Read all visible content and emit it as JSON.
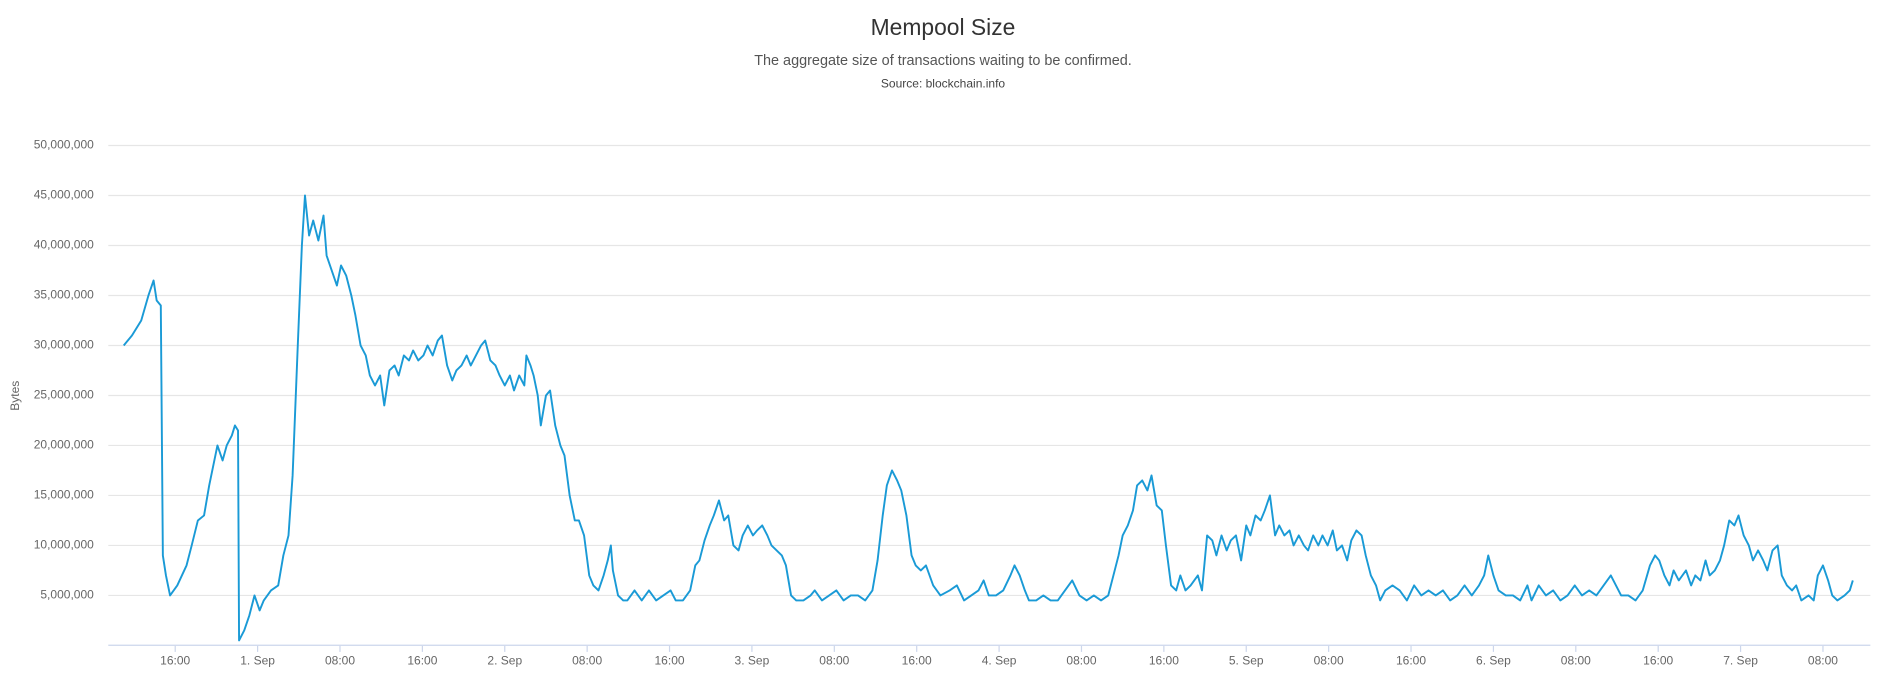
{
  "chart_data": {
    "type": "line",
    "title": "Mempool Size",
    "subtitle": "The aggregate size of transactions waiting to be confirmed.",
    "source": "Source: blockchain.info",
    "y_label": "Bytes",
    "color": "#1a9ad6",
    "grid": true,
    "xlim": [
      9.5,
      180.6
    ],
    "xticks": [
      {
        "value": 16,
        "label": "16:00"
      },
      {
        "value": 24,
        "label": "1. Sep"
      },
      {
        "value": 32,
        "label": "08:00"
      },
      {
        "value": 40,
        "label": "16:00"
      },
      {
        "value": 48,
        "label": "2. Sep"
      },
      {
        "value": 56,
        "label": "08:00"
      },
      {
        "value": 64,
        "label": "16:00"
      },
      {
        "value": 72,
        "label": "3. Sep"
      },
      {
        "value": 80,
        "label": "08:00"
      },
      {
        "value": 88,
        "label": "16:00"
      },
      {
        "value": 96,
        "label": "4. Sep"
      },
      {
        "value": 104,
        "label": "08:00"
      },
      {
        "value": 112,
        "label": "16:00"
      },
      {
        "value": 120,
        "label": "5. Sep"
      },
      {
        "value": 128,
        "label": "08:00"
      },
      {
        "value": 136,
        "label": "16:00"
      },
      {
        "value": 144,
        "label": "6. Sep"
      },
      {
        "value": 152,
        "label": "08:00"
      },
      {
        "value": 160,
        "label": "16:00"
      },
      {
        "value": 168,
        "label": "7. Sep"
      },
      {
        "value": 176,
        "label": "08:00"
      }
    ],
    "ylim": [
      0,
      50000000
    ],
    "yticks": [
      {
        "value": 5000000,
        "label": "5,000,000"
      },
      {
        "value": 10000000,
        "label": "10,000,000"
      },
      {
        "value": 15000000,
        "label": "15,000,000"
      },
      {
        "value": 20000000,
        "label": "20,000,000"
      },
      {
        "value": 25000000,
        "label": "25,000,000"
      },
      {
        "value": 30000000,
        "label": "30,000,000"
      },
      {
        "value": 35000000,
        "label": "35,000,000"
      },
      {
        "value": 40000000,
        "label": "40,000,000"
      },
      {
        "value": 45000000,
        "label": "45,000,000"
      },
      {
        "value": 50000000,
        "label": "50,000,000"
      }
    ],
    "x": [
      11.0,
      11.8,
      12.7,
      13.4,
      13.9,
      14.2,
      14.6,
      14.8,
      15.1,
      15.5,
      16.2,
      17.1,
      17.6,
      18.2,
      18.8,
      19.3,
      19.7,
      20.1,
      20.6,
      21.0,
      21.5,
      21.8,
      22.1,
      22.2,
      22.7,
      23.2,
      23.7,
      24.2,
      24.6,
      25.3,
      26.0,
      26.5,
      27.0,
      27.4,
      27.9,
      28.3,
      28.6,
      29.0,
      29.4,
      29.9,
      30.4,
      30.7,
      31.2,
      31.7,
      32.1,
      32.6,
      33.1,
      33.5,
      34.0,
      34.5,
      34.9,
      35.4,
      35.9,
      36.3,
      36.8,
      37.3,
      37.7,
      38.2,
      38.7,
      39.1,
      39.6,
      40.1,
      40.5,
      41.0,
      41.5,
      41.9,
      42.4,
      42.9,
      43.3,
      43.8,
      44.3,
      44.7,
      45.2,
      45.7,
      46.1,
      46.6,
      47.1,
      47.5,
      48.0,
      48.5,
      48.9,
      49.4,
      49.9,
      50.1,
      50.5,
      50.8,
      51.2,
      51.5,
      52.0,
      52.4,
      52.9,
      53.4,
      53.8,
      54.3,
      54.8,
      55.2,
      55.7,
      56.2,
      56.6,
      57.1,
      57.6,
      58.0,
      58.3,
      58.5,
      59.0,
      59.5,
      59.9,
      60.6,
      61.3,
      62.0,
      62.7,
      63.4,
      64.1,
      64.6,
      65.3,
      66.0,
      66.5,
      66.9,
      67.4,
      67.9,
      68.3,
      68.8,
      69.3,
      69.7,
      70.2,
      70.7,
      71.1,
      71.6,
      72.1,
      72.5,
      73.0,
      73.5,
      73.9,
      74.4,
      74.9,
      75.3,
      75.8,
      76.3,
      77.0,
      77.7,
      78.1,
      78.8,
      79.5,
      80.2,
      80.9,
      81.6,
      82.3,
      83.0,
      83.7,
      84.2,
      84.7,
      85.1,
      85.6,
      86.1,
      86.5,
      87.0,
      87.5,
      87.9,
      88.4,
      88.9,
      89.6,
      90.3,
      91.2,
      91.9,
      92.6,
      93.3,
      94.0,
      94.5,
      95.0,
      95.7,
      96.4,
      97.1,
      97.5,
      98.0,
      98.5,
      98.9,
      99.6,
      100.3,
      101.0,
      101.7,
      102.4,
      103.1,
      103.8,
      104.5,
      105.2,
      105.9,
      106.6,
      107.1,
      107.6,
      108.0,
      108.5,
      109.0,
      109.4,
      109.9,
      110.4,
      110.8,
      111.3,
      111.8,
      112.2,
      112.7,
      113.2,
      113.6,
      114.1,
      114.6,
      115.3,
      115.7,
      116.2,
      116.7,
      117.1,
      117.6,
      118.1,
      118.5,
      119.0,
      119.5,
      120.0,
      120.4,
      120.9,
      121.4,
      121.8,
      122.3,
      122.8,
      123.2,
      123.7,
      124.2,
      124.6,
      125.1,
      125.6,
      126.0,
      126.5,
      127.0,
      127.4,
      127.9,
      128.4,
      128.8,
      129.3,
      129.8,
      130.2,
      130.7,
      131.2,
      131.6,
      132.1,
      132.6,
      133.0,
      133.5,
      134.2,
      134.9,
      135.6,
      136.3,
      137.0,
      137.7,
      138.4,
      139.1,
      139.8,
      140.5,
      141.2,
      141.9,
      142.6,
      143.1,
      143.5,
      144.0,
      144.5,
      145.2,
      145.9,
      146.6,
      147.3,
      147.7,
      148.4,
      149.1,
      149.8,
      150.5,
      151.2,
      151.9,
      152.6,
      153.3,
      154.0,
      154.7,
      155.4,
      155.9,
      156.4,
      157.1,
      157.8,
      158.5,
      159.2,
      159.7,
      160.1,
      160.6,
      161.1,
      161.5,
      162.0,
      162.7,
      163.2,
      163.6,
      164.1,
      164.6,
      165.0,
      165.5,
      166.0,
      166.4,
      166.9,
      167.4,
      167.8,
      168.3,
      168.8,
      169.2,
      169.7,
      170.2,
      170.6,
      171.1,
      171.6,
      172.0,
      172.5,
      173.0,
      173.4,
      173.9,
      174.6,
      175.1,
      175.5,
      176.0,
      176.5,
      176.9,
      177.4,
      178.1,
      178.6,
      178.9
    ],
    "values": [
      30000000,
      31000000,
      32500000,
      35000000,
      36500000,
      34500000,
      34000000,
      9000000,
      7000000,
      5000000,
      6000000,
      8000000,
      10000000,
      12500000,
      13000000,
      16000000,
      18000000,
      20000000,
      18500000,
      20000000,
      21000000,
      22000000,
      21500000,
      500000,
      1500000,
      3000000,
      5000000,
      3500000,
      4500000,
      5500000,
      6000000,
      9000000,
      11000000,
      17000000,
      30000000,
      40000000,
      45000000,
      41000000,
      42500000,
      40500000,
      43000000,
      39000000,
      37500000,
      36000000,
      38000000,
      37000000,
      35000000,
      33000000,
      30000000,
      29000000,
      27000000,
      26000000,
      27000000,
      24000000,
      27500000,
      28000000,
      27000000,
      29000000,
      28500000,
      29500000,
      28500000,
      29000000,
      30000000,
      29000000,
      30500000,
      31000000,
      28000000,
      26500000,
      27500000,
      28000000,
      29000000,
      28000000,
      29000000,
      30000000,
      30500000,
      28500000,
      28000000,
      27000000,
      26000000,
      27000000,
      25500000,
      27000000,
      26000000,
      29000000,
      28000000,
      27000000,
      25000000,
      22000000,
      25000000,
      25500000,
      22000000,
      20000000,
      19000000,
      15000000,
      12500000,
      12500000,
      11000000,
      7000000,
      6000000,
      5500000,
      7000000,
      8500000,
      10000000,
      7500000,
      5000000,
      4500000,
      4500000,
      5500000,
      4500000,
      5500000,
      4500000,
      5000000,
      5500000,
      4500000,
      4500000,
      5500000,
      8000000,
      8500000,
      10500000,
      12000000,
      13000000,
      14500000,
      12500000,
      13000000,
      10000000,
      9500000,
      11000000,
      12000000,
      11000000,
      11500000,
      12000000,
      11000000,
      10000000,
      9500000,
      9000000,
      8000000,
      5000000,
      4500000,
      4500000,
      5000000,
      5500000,
      4500000,
      5000000,
      5500000,
      4500000,
      5000000,
      5000000,
      4500000,
      5500000,
      8500000,
      13000000,
      16000000,
      17500000,
      16500000,
      15500000,
      13000000,
      9000000,
      8000000,
      7500000,
      8000000,
      6000000,
      5000000,
      5500000,
      6000000,
      4500000,
      5000000,
      5500000,
      6500000,
      5000000,
      5000000,
      5500000,
      7000000,
      8000000,
      7000000,
      5500000,
      4500000,
      4500000,
      5000000,
      4500000,
      4500000,
      5500000,
      6500000,
      5000000,
      4500000,
      5000000,
      4500000,
      5000000,
      7000000,
      9000000,
      11000000,
      12000000,
      13500000,
      16000000,
      16500000,
      15500000,
      17000000,
      14000000,
      13500000,
      10000000,
      6000000,
      5500000,
      7000000,
      5500000,
      6000000,
      7000000,
      5500000,
      11000000,
      10500000,
      9000000,
      11000000,
      9500000,
      10500000,
      11000000,
      8500000,
      12000000,
      11000000,
      13000000,
      12500000,
      13500000,
      15000000,
      11000000,
      12000000,
      11000000,
      11500000,
      10000000,
      11000000,
      10000000,
      9500000,
      11000000,
      10000000,
      11000000,
      10000000,
      11500000,
      9500000,
      10000000,
      8500000,
      10500000,
      11500000,
      11000000,
      9000000,
      7000000,
      6000000,
      4500000,
      5500000,
      6000000,
      5500000,
      4500000,
      6000000,
      5000000,
      5500000,
      5000000,
      5500000,
      4500000,
      5000000,
      6000000,
      5000000,
      6000000,
      7000000,
      9000000,
      7000000,
      5500000,
      5000000,
      5000000,
      4500000,
      6000000,
      4500000,
      6000000,
      5000000,
      5500000,
      4500000,
      5000000,
      6000000,
      5000000,
      5500000,
      5000000,
      6000000,
      7000000,
      6000000,
      5000000,
      5000000,
      4500000,
      5500000,
      8000000,
      9000000,
      8500000,
      7000000,
      6000000,
      7500000,
      6500000,
      7500000,
      6000000,
      7000000,
      6500000,
      8500000,
      7000000,
      7500000,
      8500000,
      10000000,
      12500000,
      12000000,
      13000000,
      11000000,
      10000000,
      8500000,
      9500000,
      8500000,
      7500000,
      9500000,
      10000000,
      7000000,
      6000000,
      5500000,
      6000000,
      4500000,
      5000000,
      4500000,
      7000000,
      8000000,
      6500000,
      5000000,
      4500000,
      5000000,
      5500000,
      6500000
    ]
  }
}
